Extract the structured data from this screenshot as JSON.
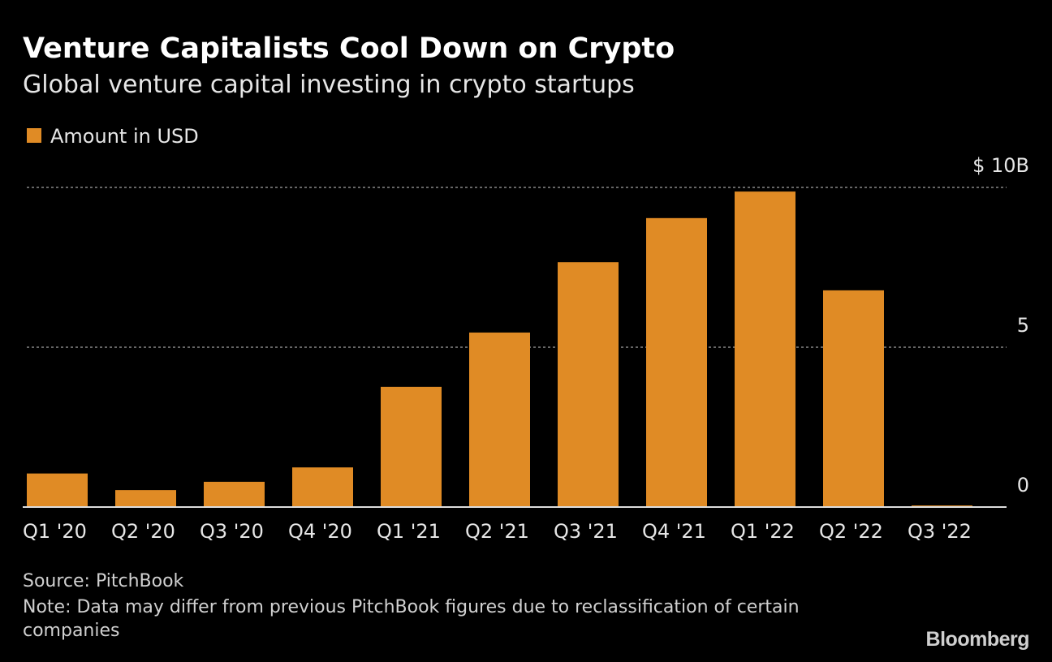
{
  "chart_data": {
    "type": "bar",
    "title": "Venture Capitalists Cool Down on Crypto",
    "subtitle": "Global venture capital investing in crypto startups",
    "legend": "Amount in USD",
    "categories": [
      "Q1 '20",
      "Q2 '20",
      "Q3 '20",
      "Q4 '20",
      "Q1 '21",
      "Q2 '21",
      "Q3 '21",
      "Q4 '21",
      "Q1 '22",
      "Q2 '22",
      "Q3 '22"
    ],
    "values": [
      1.05,
      0.53,
      0.79,
      1.24,
      3.76,
      5.46,
      7.66,
      9.04,
      9.87,
      6.78,
      0.05
    ],
    "color": "#e08b25",
    "ylim": [
      0,
      10
    ],
    "yticks": [
      0,
      5,
      {
        "value": 10,
        "label": "$ 10B"
      }
    ],
    "grid": true,
    "source": "Source: PitchBook",
    "note": "Note: Data may differ from previous PitchBook figures due to reclassification of certain companies",
    "brand": "Bloomberg"
  }
}
